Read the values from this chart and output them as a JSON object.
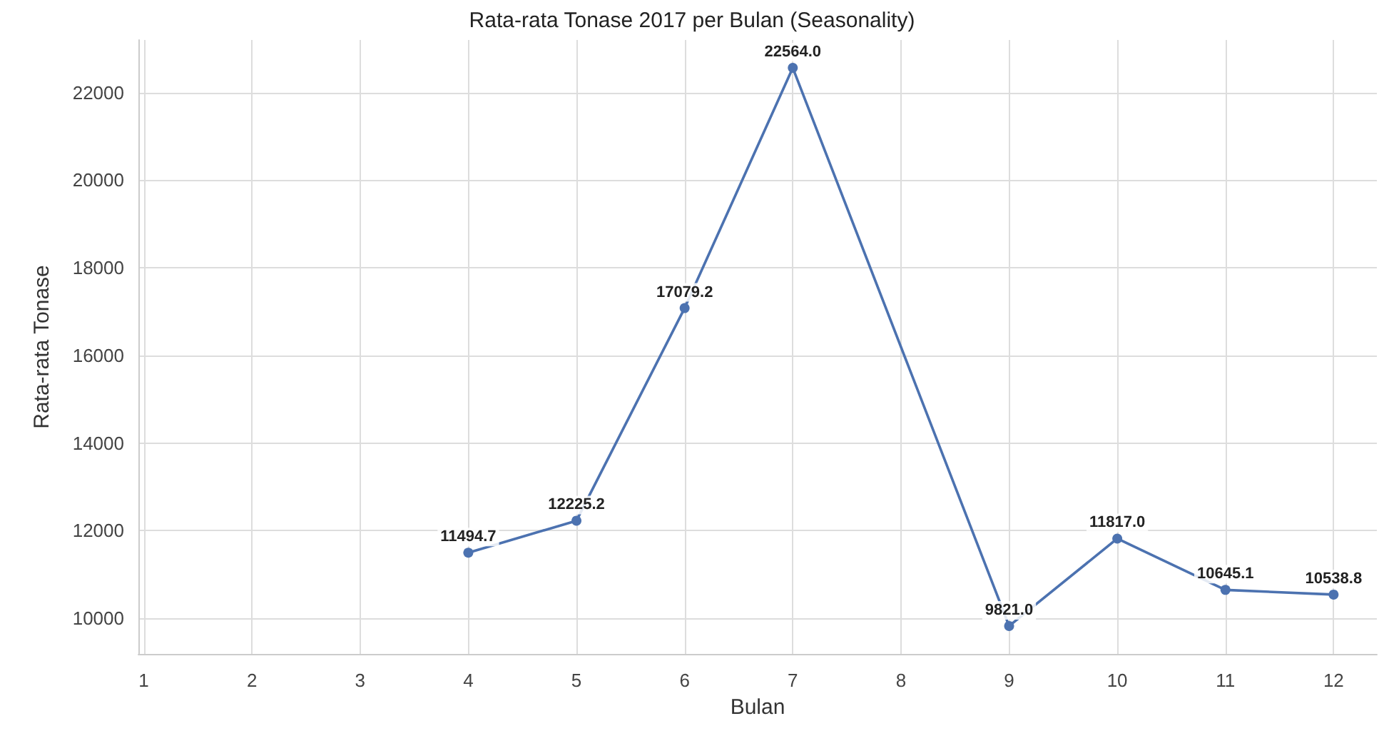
{
  "chart_data": {
    "type": "line",
    "title": "Rata-rata Tonase 2017 per Bulan (Seasonality)",
    "xlabel": "Bulan",
    "ylabel": "Rata-rata Tonase",
    "x": [
      4,
      5,
      6,
      7,
      9,
      10,
      11,
      12
    ],
    "series": [
      {
        "color": "#4c72b0",
        "values": [
          11494.7,
          12225.2,
          17079.2,
          22564.0,
          9821.0,
          11817.0,
          10645.1,
          10538.8
        ],
        "value_labels": [
          "11494.7",
          "12225.2",
          "17079.2",
          "22564.0",
          "9821.0",
          "11817.0",
          "10645.1",
          "10538.8"
        ]
      }
    ],
    "xlim": [
      0.95,
      12.4
    ],
    "xticks": [
      1,
      2,
      3,
      4,
      5,
      6,
      7,
      8,
      9,
      10,
      11,
      12
    ],
    "ylim": [
      9184,
      23201
    ],
    "yticks": [
      10000,
      12000,
      14000,
      16000,
      18000,
      20000,
      22000
    ],
    "grid": true,
    "marker": "circle",
    "line_style": "solid"
  }
}
